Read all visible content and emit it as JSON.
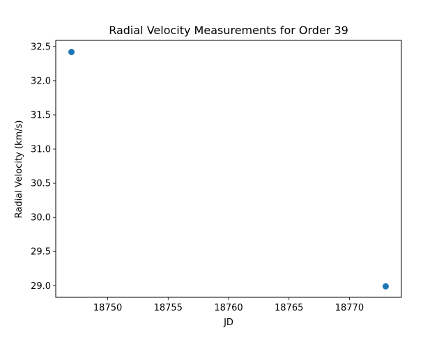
{
  "chart_data": {
    "type": "scatter",
    "title": "Radial Velocity Measurements for Order 39",
    "xlabel": "JD",
    "ylabel": "Radial Velocity (km/s)",
    "xlim": [
      18745.7,
      18774.3
    ],
    "ylim": [
      28.83,
      32.59
    ],
    "grid": false,
    "x_ticks": [
      18750,
      18755,
      18760,
      18765,
      18770
    ],
    "x_tick_labels": [
      "18750",
      "18755",
      "18760",
      "18765",
      "18770"
    ],
    "y_ticks": [
      29.0,
      29.5,
      30.0,
      30.5,
      31.0,
      31.5,
      32.0,
      32.5
    ],
    "y_tick_labels": [
      "29.0",
      "29.5",
      "30.0",
      "30.5",
      "31.0",
      "31.5",
      "32.0",
      "32.5"
    ],
    "series": [
      {
        "color": "#1f77b4",
        "points": [
          {
            "x": 18747.0,
            "y": 32.42
          },
          {
            "x": 18773.0,
            "y": 28.99
          }
        ]
      }
    ]
  }
}
